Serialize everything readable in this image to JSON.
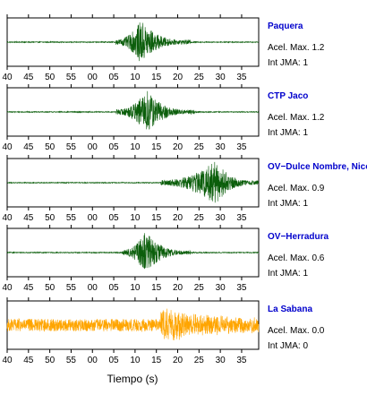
{
  "chart_data": {
    "type": "line",
    "xlabel": "Tiempo (s)",
    "x_tick_labels": [
      "40",
      "45",
      "50",
      "55",
      "00",
      "05",
      "10",
      "15",
      "20",
      "25",
      "30",
      "35"
    ],
    "panels": [
      {
        "station": "Paquera",
        "accel_label": "Acel. Max. 1.2",
        "jma_label": "Int JMA: 1",
        "color": "#0b5e0b",
        "onset": 5.5,
        "peak": 11.5,
        "end": 23,
        "peak_amp": 1.0,
        "noise_amp": 0.02
      },
      {
        "station": "CTP Jaco",
        "accel_label": "Acel. Max. 1.2",
        "jma_label": "Int JMA: 1",
        "color": "#0b5e0b",
        "onset": 5.5,
        "peak": 13,
        "end": 24,
        "peak_amp": 1.0,
        "noise_amp": 0.02
      },
      {
        "station": "OV−Dulce Nombre, Nicoya",
        "accel_label": "Acel. Max. 0.9",
        "jma_label": "Int JMA: 1",
        "color": "#0b5e0b",
        "onset": 16,
        "peak": 29,
        "end": 39,
        "peak_amp": 1.0,
        "noise_amp": 0.02
      },
      {
        "station": "OV−Herradura",
        "accel_label": "Acel. Max. 0.6",
        "jma_label": "Int JMA: 1",
        "color": "#0b5e0b",
        "onset": 7,
        "peak": 12.5,
        "end": 23,
        "peak_amp": 1.0,
        "noise_amp": 0.02
      },
      {
        "station": "La Sabana",
        "accel_label": "Acel. Max. 0.0",
        "jma_label": "Int JMA: 0",
        "color": "#ffa500",
        "onset": 16,
        "peak": 16.5,
        "end": 39,
        "peak_amp": 1.0,
        "noise_amp": 0.28
      }
    ]
  }
}
